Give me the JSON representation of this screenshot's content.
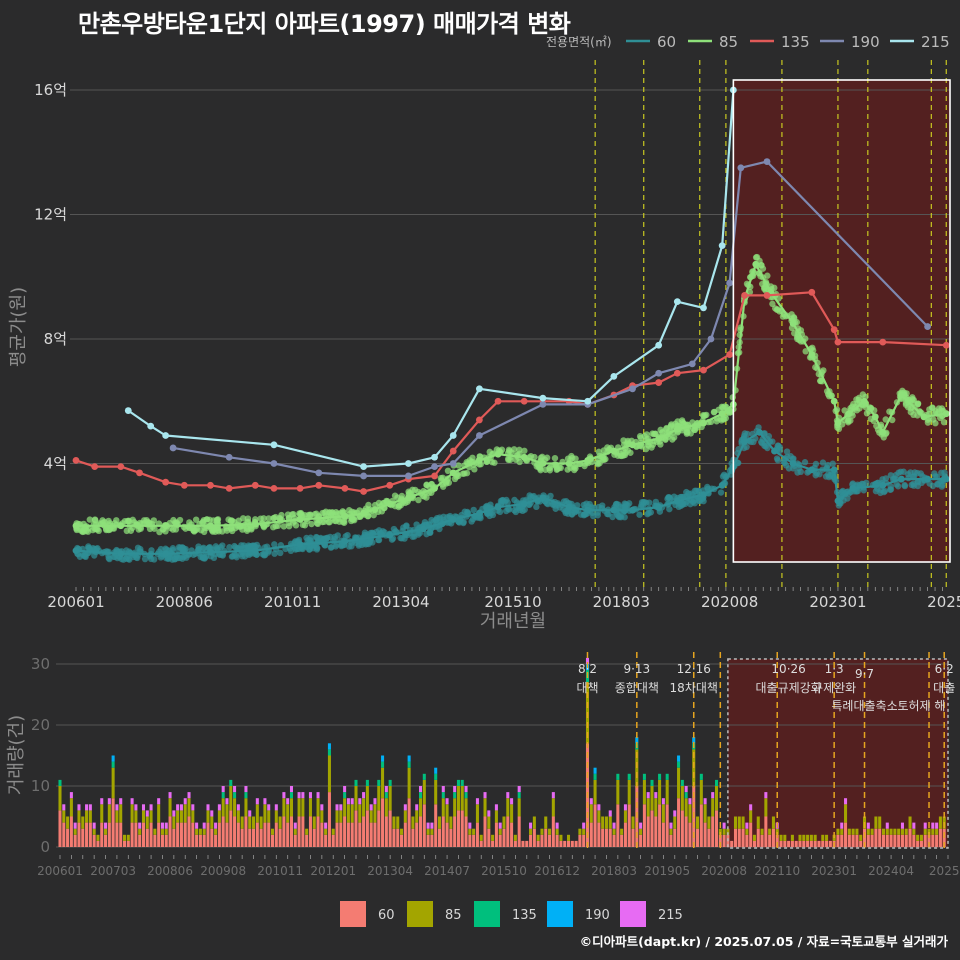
{
  "title": "만촌우방타운1단지 아파트(1997) 매매가격 변화",
  "caption": "©디아파트(dapt.kr) / 2025.07.05 / 자료=국토교통부 실거래가",
  "colors": {
    "background": "#2b2b2c",
    "grid": "#555555",
    "axis_text": "#d8d8d8",
    "axis_title": "#8c8c8c",
    "policy_line": "#c8c820",
    "policy_line_bottom": "#e6a520",
    "highlight_fill": "#5a1e1e",
    "highlight_border": "#ffffff",
    "bar_highlight_border": "#bbbbbb"
  },
  "chart_data": [
    {
      "type": "line",
      "name": "price",
      "xlabel": "거래년월",
      "ylabel": "평균가(원)",
      "ylim": [
        0,
        16.5
      ],
      "yticks": [
        {
          "v": 4,
          "label": "4억"
        },
        {
          "v": 8,
          "label": "8억"
        },
        {
          "v": 12,
          "label": "12억"
        },
        {
          "v": 16,
          "label": "16억"
        }
      ],
      "xlim": [
        "2006-01",
        "2025-07"
      ],
      "xticks": [
        {
          "t": "2006-01",
          "label": "200601"
        },
        {
          "t": "2008-06",
          "label": "200806"
        },
        {
          "t": "2010-11",
          "label": "201011"
        },
        {
          "t": "2013-04",
          "label": "201304"
        },
        {
          "t": "2015-10",
          "label": "201510"
        },
        {
          "t": "2018-03",
          "label": "201803"
        },
        {
          "t": "2020-08",
          "label": "202008"
        },
        {
          "t": "2023-01",
          "label": "202301"
        },
        {
          "t": "2025-06",
          "label": "2025"
        }
      ],
      "legend_title": "전용면적(㎡)",
      "legend_position": "top-right",
      "grid": true,
      "highlight_range": [
        "2020-09",
        "2025-07"
      ],
      "policy_dates": [
        "2017-08",
        "2018-09",
        "2019-12",
        "2020-07",
        "2021-10",
        "2023-01",
        "2023-09",
        "2025-02",
        "2025-06"
      ],
      "series": [
        {
          "name": "60",
          "color": "#2f8f96",
          "points": [
            [
              "2006-01",
              1.2
            ],
            [
              "2007-01",
              1.1
            ],
            [
              "2008-01",
              1.1
            ],
            [
              "2009-01",
              1.15
            ],
            [
              "2010-01",
              1.2
            ],
            [
              "2011-01",
              1.4
            ],
            [
              "2012-01",
              1.5
            ],
            [
              "2013-01",
              1.7
            ],
            [
              "2013-10",
              1.9
            ],
            [
              "2014-06",
              2.2
            ],
            [
              "2015-01",
              2.4
            ],
            [
              "2015-06",
              2.6
            ],
            [
              "2016-01",
              2.7
            ],
            [
              "2016-06",
              2.9
            ],
            [
              "2017-01",
              2.6
            ],
            [
              "2017-06",
              2.5
            ],
            [
              "2018-01",
              2.5
            ],
            [
              "2018-06",
              2.5
            ],
            [
              "2019-01",
              2.6
            ],
            [
              "2019-06",
              2.8
            ],
            [
              "2020-01",
              3.0
            ],
            [
              "2020-06",
              3.3
            ],
            [
              "2020-09",
              3.9
            ],
            [
              "2020-12",
              4.7
            ],
            [
              "2021-04",
              5.0
            ],
            [
              "2021-08",
              4.4
            ],
            [
              "2022-01",
              4.0
            ],
            [
              "2022-06",
              3.8
            ],
            [
              "2022-12",
              3.8
            ],
            [
              "2023-01",
              2.8
            ],
            [
              "2023-05",
              3.2
            ],
            [
              "2024-01",
              3.3
            ],
            [
              "2024-06",
              3.5
            ],
            [
              "2025-01",
              3.5
            ],
            [
              "2025-06",
              3.5
            ]
          ]
        },
        {
          "name": "85",
          "color": "#8ee07a",
          "points": [
            [
              "2006-01",
              2.0
            ],
            [
              "2007-01",
              2.0
            ],
            [
              "2008-01",
              2.0
            ],
            [
              "2009-01",
              2.0
            ],
            [
              "2010-01",
              2.05
            ],
            [
              "2011-01",
              2.2
            ],
            [
              "2012-01",
              2.3
            ],
            [
              "2012-06",
              2.4
            ],
            [
              "2013-01",
              2.7
            ],
            [
              "2013-06",
              2.9
            ],
            [
              "2014-01",
              3.2
            ],
            [
              "2014-06",
              3.7
            ],
            [
              "2015-01",
              4.1
            ],
            [
              "2015-06",
              4.3
            ],
            [
              "2016-01",
              4.2
            ],
            [
              "2016-06",
              4.0
            ],
            [
              "2017-01",
              4.0
            ],
            [
              "2017-06",
              4.1
            ],
            [
              "2018-01",
              4.4
            ],
            [
              "2018-06",
              4.6
            ],
            [
              "2019-01",
              4.8
            ],
            [
              "2019-06",
              5.1
            ],
            [
              "2020-01",
              5.3
            ],
            [
              "2020-06",
              5.6
            ],
            [
              "2020-09",
              5.9
            ],
            [
              "2020-12",
              9.3
            ],
            [
              "2021-03",
              10.4
            ],
            [
              "2021-07",
              9.5
            ],
            [
              "2022-01",
              8.5
            ],
            [
              "2022-06",
              7.5
            ],
            [
              "2022-12",
              6.0
            ],
            [
              "2023-01",
              5.3
            ],
            [
              "2023-04",
              5.6
            ],
            [
              "2023-08",
              6.0
            ],
            [
              "2023-11",
              5.5
            ],
            [
              "2024-01",
              5.0
            ],
            [
              "2024-06",
              6.2
            ],
            [
              "2024-12",
              5.5
            ],
            [
              "2025-06",
              5.6
            ]
          ]
        },
        {
          "name": "135",
          "color": "#e05a58",
          "points": [
            [
              "2006-01",
              4.1
            ],
            [
              "2006-06",
              3.9
            ],
            [
              "2007-01",
              3.9
            ],
            [
              "2007-06",
              3.7
            ],
            [
              "2008-01",
              3.4
            ],
            [
              "2008-06",
              3.3
            ],
            [
              "2009-01",
              3.3
            ],
            [
              "2009-06",
              3.2
            ],
            [
              "2010-01",
              3.3
            ],
            [
              "2010-06",
              3.2
            ],
            [
              "2011-01",
              3.2
            ],
            [
              "2011-06",
              3.3
            ],
            [
              "2012-01",
              3.2
            ],
            [
              "2012-06",
              3.1
            ],
            [
              "2013-01",
              3.3
            ],
            [
              "2013-06",
              3.5
            ],
            [
              "2014-01",
              3.6
            ],
            [
              "2014-06",
              4.4
            ],
            [
              "2015-01",
              5.4
            ],
            [
              "2015-06",
              6.0
            ],
            [
              "2016-01",
              6.0
            ],
            [
              "2017-01",
              6.0
            ],
            [
              "2017-06",
              5.9
            ],
            [
              "2018-01",
              6.2
            ],
            [
              "2018-06",
              6.5
            ],
            [
              "2019-01",
              6.6
            ],
            [
              "2019-06",
              6.9
            ],
            [
              "2020-01",
              7.0
            ],
            [
              "2020-08",
              7.5
            ],
            [
              "2020-12",
              9.4
            ],
            [
              "2021-06",
              9.4
            ],
            [
              "2022-06",
              9.5
            ],
            [
              "2022-12",
              8.3
            ],
            [
              "2023-01",
              7.9
            ],
            [
              "2024-01",
              7.9
            ],
            [
              "2025-06",
              7.8
            ]
          ]
        },
        {
          "name": "190",
          "color": "#7e88b0",
          "points": [
            [
              "2008-03",
              4.5
            ],
            [
              "2009-06",
              4.2
            ],
            [
              "2010-06",
              4.0
            ],
            [
              "2011-06",
              3.7
            ],
            [
              "2012-06",
              3.6
            ],
            [
              "2013-06",
              3.6
            ],
            [
              "2014-01",
              3.9
            ],
            [
              "2014-06",
              4.0
            ],
            [
              "2015-01",
              4.9
            ],
            [
              "2016-06",
              5.9
            ],
            [
              "2017-06",
              5.9
            ],
            [
              "2018-06",
              6.4
            ],
            [
              "2019-01",
              6.9
            ],
            [
              "2019-10",
              7.2
            ],
            [
              "2020-03",
              8.0
            ],
            [
              "2020-08",
              9.8
            ],
            [
              "2020-11",
              13.5
            ],
            [
              "2021-06",
              13.7
            ],
            [
              "2025-01",
              8.4
            ]
          ]
        },
        {
          "name": "215",
          "color": "#a9e6ee",
          "points": [
            [
              "2007-03",
              5.7
            ],
            [
              "2007-09",
              5.2
            ],
            [
              "2008-01",
              4.9
            ],
            [
              "2010-06",
              4.6
            ],
            [
              "2012-06",
              3.9
            ],
            [
              "2013-06",
              4.0
            ],
            [
              "2014-01",
              4.2
            ],
            [
              "2014-06",
              4.9
            ],
            [
              "2015-01",
              6.4
            ],
            [
              "2016-06",
              6.1
            ],
            [
              "2017-06",
              6.0
            ],
            [
              "2018-01",
              6.8
            ],
            [
              "2019-01",
              7.8
            ],
            [
              "2019-06",
              9.2
            ],
            [
              "2020-01",
              9.0
            ],
            [
              "2020-06",
              11.0
            ],
            [
              "2020-09",
              16.0
            ]
          ]
        }
      ]
    },
    {
      "type": "bar",
      "name": "volume",
      "ylabel": "거래량(건)",
      "ylim": [
        0,
        32
      ],
      "yticks": [
        0,
        10,
        20,
        30
      ],
      "stacked": true,
      "xticks": [
        {
          "t": "2006-01",
          "label": "200601"
        },
        {
          "t": "2007-03",
          "label": "200703"
        },
        {
          "t": "2008-06",
          "label": "200806"
        },
        {
          "t": "2009-08",
          "label": "200908"
        },
        {
          "t": "2010-11",
          "label": "201011"
        },
        {
          "t": "2012-01",
          "label": "201201"
        },
        {
          "t": "2013-04",
          "label": "201304"
        },
        {
          "t": "2014-07",
          "label": "201407"
        },
        {
          "t": "2015-10",
          "label": "201510"
        },
        {
          "t": "2016-12",
          "label": "201612"
        },
        {
          "t": "2018-03",
          "label": "201803"
        },
        {
          "t": "2019-05",
          "label": "201905"
        },
        {
          "t": "2020-08",
          "label": "202008"
        },
        {
          "t": "2021-10",
          "label": "202110"
        },
        {
          "t": "2023-01",
          "label": "202301"
        },
        {
          "t": "2024-04",
          "label": "202404"
        },
        {
          "t": "2025-06",
          "label": "2025"
        }
      ],
      "legend_position": "bottom",
      "highlight_range": [
        "2020-09",
        "2025-07"
      ],
      "series": [
        {
          "name": "60",
          "color": "#f47c72"
        },
        {
          "name": "85",
          "color": "#a3a500"
        },
        {
          "name": "135",
          "color": "#00bf7d"
        },
        {
          "name": "190",
          "color": "#00b0f6"
        },
        {
          "name": "215",
          "color": "#e76bf3"
        }
      ],
      "annotations": [
        {
          "t": "2017-08",
          "date": "8·2",
          "label": "대책"
        },
        {
          "t": "2018-09",
          "date": "9·13",
          "label": "종합대책"
        },
        {
          "t": "2019-12",
          "date": "12·16",
          "label": "18차대책"
        },
        {
          "t": "2022-01",
          "date": "10·26",
          "label": "대출규제강화"
        },
        {
          "t": "2023-01",
          "date": "1·3",
          "label": "규제완화"
        },
        {
          "t": "2023-09",
          "date": "9·7",
          "label": "특례대출축소"
        },
        {
          "t": "2024-12",
          "date": "",
          "label": "토허제 해"
        },
        {
          "t": "2025-06",
          "date": "6·2",
          "label": "대출"
        }
      ]
    }
  ]
}
